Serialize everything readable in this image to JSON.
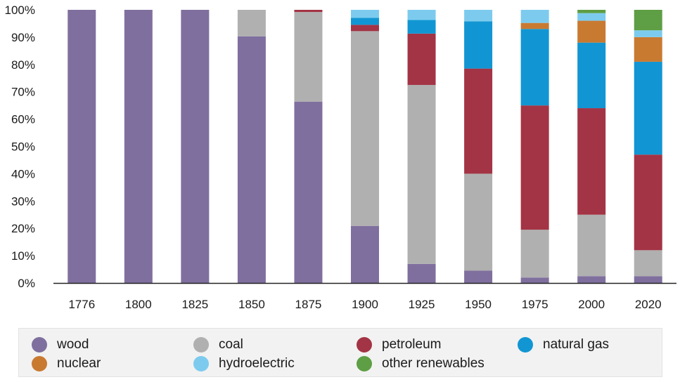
{
  "chart_data": {
    "type": "bar",
    "stacked": true,
    "categories": [
      "1776",
      "1800",
      "1825",
      "1850",
      "1875",
      "1900",
      "1925",
      "1950",
      "1975",
      "2000",
      "2020"
    ],
    "ylim": [
      0,
      100
    ],
    "yticks": [
      0,
      10,
      20,
      30,
      40,
      50,
      60,
      70,
      80,
      90,
      100
    ],
    "ytick_labels": [
      "0%",
      "10%",
      "20%",
      "30%",
      "40%",
      "50%",
      "60%",
      "70%",
      "80%",
      "90%",
      "100%"
    ],
    "grid": false,
    "legend_position": "bottom",
    "series": [
      {
        "name": "wood",
        "color": "#7f6f9e",
        "values": [
          100,
          100,
          100,
          90.3,
          66.4,
          20.9,
          7.0,
          4.5,
          2.0,
          2.5,
          2.5
        ]
      },
      {
        "name": "coal",
        "color": "#b0b0b0",
        "values": [
          0,
          0,
          0,
          9.7,
          32.8,
          71.3,
          65.5,
          35.5,
          17.5,
          22.5,
          9.5
        ]
      },
      {
        "name": "petroleum",
        "color": "#a33445",
        "values": [
          0,
          0,
          0,
          0,
          0.8,
          2.3,
          18.8,
          38.5,
          45.5,
          39.0,
          35.0
        ]
      },
      {
        "name": "natural gas",
        "color": "#1196d3",
        "values": [
          0,
          0,
          0,
          0,
          0,
          2.6,
          5.0,
          17.3,
          28.0,
          24.0,
          34.0
        ]
      },
      {
        "name": "nuclear",
        "color": "#c97a31",
        "values": [
          0,
          0,
          0,
          0,
          0,
          0,
          0,
          0,
          2.2,
          8.0,
          9.0
        ]
      },
      {
        "name": "hydroelectric",
        "color": "#7ccbee",
        "values": [
          0,
          0,
          0,
          0,
          0,
          2.9,
          3.7,
          4.2,
          4.8,
          2.8,
          2.5
        ]
      },
      {
        "name": "other renewables",
        "color": "#5e9e44",
        "values": [
          0,
          0,
          0,
          0,
          0,
          0,
          0,
          0,
          0,
          1.2,
          7.5
        ]
      }
    ],
    "legend": {
      "rows": [
        [
          "wood",
          "coal",
          "petroleum",
          "natural gas"
        ],
        [
          "nuclear",
          "hydroelectric",
          "other renewables"
        ]
      ]
    }
  }
}
